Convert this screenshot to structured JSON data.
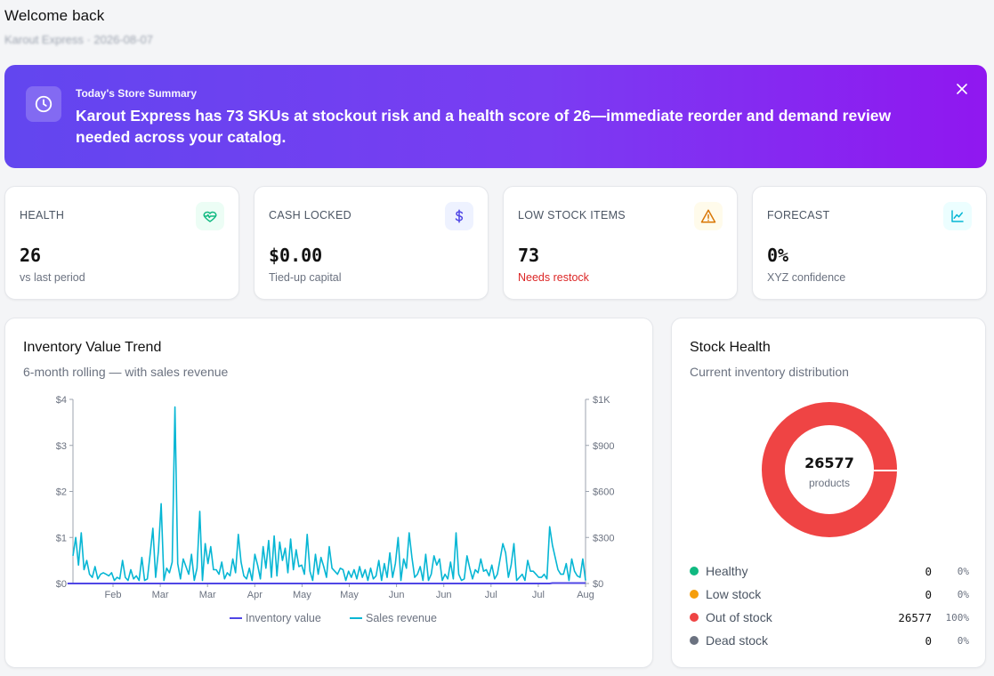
{
  "header": {
    "title": "Welcome back",
    "subtitle": "Karout Express · 2026-08-07"
  },
  "banner": {
    "kicker": "Today's Store Summary",
    "message": "Karout Express has 73 SKUs at stockout risk and a health score of 26—immediate reorder and demand review needed across your catalog.",
    "icon": "clock-icon",
    "close_icon": "close-icon"
  },
  "kpis": [
    {
      "label": "HEALTH",
      "value": "26",
      "sub": "vs last period",
      "icon": "heart-pulse-icon",
      "color": "#10b981",
      "bg": "#ecfdf5"
    },
    {
      "label": "CASH LOCKED",
      "value": "$0.00",
      "sub": "Tied-up capital",
      "icon": "dollar-icon",
      "color": "#4f46e5",
      "bg": "#eef2ff"
    },
    {
      "label": "LOW STOCK ITEMS",
      "value": "73",
      "sub": "Needs restock",
      "icon": "warning-icon",
      "color": "#d97706",
      "bg": "#fffbeb"
    },
    {
      "label": "FORECAST",
      "value": "0%",
      "sub": "XYZ confidence",
      "icon": "line-chart-icon",
      "color": "#06b6d4",
      "bg": "#ecfeff"
    }
  ],
  "trend": {
    "title": "Inventory Value Trend",
    "subtitle": "6-month rolling — with sales revenue"
  },
  "health": {
    "title": "Stock Health",
    "subtitle": "Current inventory distribution",
    "total": "26577",
    "total_label": "products",
    "legend": [
      {
        "label": "Healthy",
        "count": "0",
        "pct": "0%",
        "color": "#10b981"
      },
      {
        "label": "Low stock",
        "count": "0",
        "pct": "0%",
        "color": "#f59e0b"
      },
      {
        "label": "Out of stock",
        "count": "26577",
        "pct": "100%",
        "color": "#ef4444"
      },
      {
        "label": "Dead stock",
        "count": "0",
        "pct": "0%",
        "color": "#6b7280"
      }
    ]
  },
  "chart_data": {
    "type": "line",
    "x_ticks": [
      "Feb",
      "Mar",
      "Mar",
      "Apr",
      "May",
      "May",
      "Jun",
      "Jun",
      "Jul",
      "Jul",
      "Aug"
    ],
    "y_left": {
      "ticks": [
        "$0",
        "$1",
        "$2",
        "$3",
        "$4"
      ],
      "range": [
        0,
        4
      ]
    },
    "y_right": {
      "ticks": [
        "$0",
        "$300",
        "$600",
        "$900",
        "$1K"
      ],
      "range": [
        0,
        1200
      ]
    },
    "series": [
      {
        "name": "Inventory value",
        "axis": "left",
        "color": "#4f46e5",
        "values": [
          0,
          0,
          0,
          0,
          0,
          0,
          0,
          0,
          0,
          0,
          0,
          0,
          0,
          0,
          0,
          0,
          0,
          0,
          0,
          0,
          0,
          0,
          0,
          0,
          0,
          0,
          0,
          0,
          0,
          0,
          0,
          0,
          0,
          0,
          0,
          0,
          0,
          0,
          0,
          0,
          0,
          0,
          0,
          0,
          0,
          0,
          0,
          0,
          0,
          0,
          0,
          0,
          0,
          0,
          0,
          0,
          0,
          0,
          0,
          0,
          0,
          0,
          0,
          0,
          0,
          0,
          0,
          0,
          0,
          0,
          0,
          0,
          0,
          0,
          0,
          0,
          0,
          0,
          0,
          0,
          0,
          0,
          0,
          0,
          0,
          0,
          0,
          0,
          0,
          0,
          0,
          0,
          0,
          0,
          0,
          0,
          0,
          0,
          0,
          0,
          0,
          0,
          0,
          0,
          0,
          0,
          0,
          0,
          0,
          0,
          0,
          0,
          0,
          0,
          0,
          0,
          0,
          0,
          0,
          0,
          0,
          0,
          0,
          0,
          0,
          0,
          0,
          0,
          0,
          0,
          0,
          0,
          0,
          0,
          0,
          0,
          0,
          0,
          0,
          0,
          0,
          0,
          0,
          0,
          0,
          0,
          0,
          0,
          0,
          0,
          0,
          0,
          0,
          0,
          0,
          0,
          0,
          0,
          0,
          0,
          0,
          0,
          0,
          0,
          0,
          0,
          0,
          0,
          0,
          0,
          0,
          0,
          0,
          0,
          0,
          0,
          0.01,
          0.01,
          0.01,
          0.01,
          0.01,
          0.01,
          0.01,
          0.01,
          0.01,
          0.01,
          0.01,
          0.01,
          0.01
        ]
      },
      {
        "name": "Sales revenue",
        "axis": "right",
        "color": "#06b6d4",
        "values": [
          180,
          300,
          120,
          330,
          90,
          150,
          60,
          40,
          110,
          30,
          60,
          70,
          60,
          50,
          70,
          20,
          40,
          30,
          150,
          40,
          20,
          90,
          30,
          50,
          20,
          170,
          20,
          30,
          190,
          360,
          40,
          210,
          520,
          20,
          100,
          70,
          140,
          1150,
          130,
          30,
          160,
          110,
          60,
          190,
          20,
          100,
          470,
          20,
          260,
          130,
          240,
          90,
          90,
          60,
          140,
          30,
          70,
          50,
          160,
          70,
          320,
          140,
          50,
          30,
          100,
          20,
          190,
          120,
          30,
          240,
          100,
          280,
          40,
          310,
          50,
          270,
          150,
          230,
          70,
          290,
          90,
          220,
          110,
          120,
          60,
          320,
          80,
          20,
          190,
          60,
          170,
          110,
          40,
          240,
          100,
          80,
          60,
          100,
          90,
          20,
          80,
          40,
          90,
          30,
          110,
          40,
          90,
          20,
          100,
          30,
          50,
          150,
          20,
          130,
          40,
          200,
          40,
          130,
          300,
          20,
          160,
          100,
          330,
          170,
          40,
          60,
          110,
          20,
          190,
          20,
          60,
          180,
          120,
          160,
          20,
          60,
          30,
          140,
          30,
          330,
          60,
          20,
          30,
          180,
          100,
          30,
          90,
          70,
          160,
          80,
          90,
          50,
          120,
          30,
          60,
          160,
          260,
          200,
          40,
          120,
          260,
          20,
          40,
          60,
          20,
          150,
          80,
          80,
          60,
          40,
          40,
          60,
          30,
          370,
          250,
          170,
          90,
          60,
          60,
          130,
          20,
          160,
          80,
          50,
          40,
          160,
          20
        ]
      }
    ],
    "legend": [
      "Inventory value",
      "Sales revenue"
    ]
  }
}
